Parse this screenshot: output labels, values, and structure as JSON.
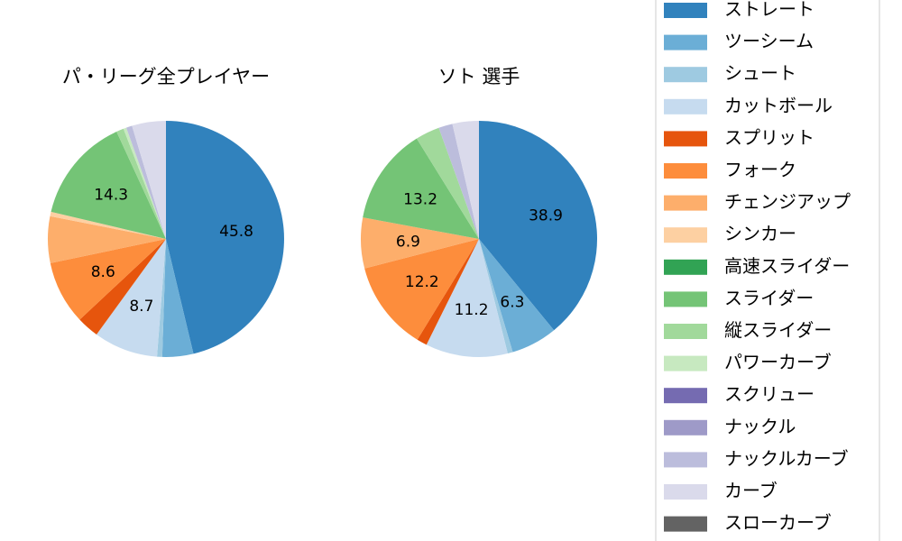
{
  "chart_data": [
    {
      "type": "pie",
      "title": "パ・リーグ全プレイヤー",
      "slices": [
        {
          "label": "ストレート",
          "value": 45.8,
          "color": "#3182bd",
          "show_label": true
        },
        {
          "label": "ツーシーム",
          "value": 4.2,
          "color": "#6baed6",
          "show_label": false
        },
        {
          "label": "シュート",
          "value": 0.7,
          "color": "#9ecae1",
          "show_label": false
        },
        {
          "label": "カットボール",
          "value": 8.7,
          "color": "#c6dbef",
          "show_label": true
        },
        {
          "label": "スプリット",
          "value": 3.0,
          "color": "#e6550d",
          "show_label": false
        },
        {
          "label": "フォーク",
          "value": 8.6,
          "color": "#fd8d3c",
          "show_label": true
        },
        {
          "label": "チェンジアップ",
          "value": 6.3,
          "color": "#fdae6b",
          "show_label": false
        },
        {
          "label": "シンカー",
          "value": 0.6,
          "color": "#fdd0a2",
          "show_label": false
        },
        {
          "label": "高速スライダー",
          "value": 0.0,
          "color": "#31a354",
          "show_label": false
        },
        {
          "label": "スライダー",
          "value": 14.3,
          "color": "#74c476",
          "show_label": true
        },
        {
          "label": "縦スライダー",
          "value": 1.0,
          "color": "#a1d99b",
          "show_label": false
        },
        {
          "label": "パワーカーブ",
          "value": 0.4,
          "color": "#c7e9c0",
          "show_label": false
        },
        {
          "label": "スクリュー",
          "value": 0.0,
          "color": "#756bb1",
          "show_label": false
        },
        {
          "label": "ナックル",
          "value": 0.0,
          "color": "#9e9ac8",
          "show_label": false
        },
        {
          "label": "ナックルカーブ",
          "value": 0.8,
          "color": "#bcbddc",
          "show_label": false
        },
        {
          "label": "カーブ",
          "value": 4.6,
          "color": "#dadaeb",
          "show_label": false
        },
        {
          "label": "スローカーブ",
          "value": 0.0,
          "color": "#636363",
          "show_label": false
        }
      ]
    },
    {
      "type": "pie",
      "title": "ソト  選手",
      "slices": [
        {
          "label": "ストレート",
          "value": 38.9,
          "color": "#3182bd",
          "show_label": true
        },
        {
          "label": "ツーシーム",
          "value": 6.3,
          "color": "#6baed6",
          "show_label": true
        },
        {
          "label": "シュート",
          "value": 0.7,
          "color": "#9ecae1",
          "show_label": false
        },
        {
          "label": "カットボール",
          "value": 11.2,
          "color": "#c6dbef",
          "show_label": true
        },
        {
          "label": "スプリット",
          "value": 1.4,
          "color": "#e6550d",
          "show_label": false
        },
        {
          "label": "フォーク",
          "value": 12.2,
          "color": "#fd8d3c",
          "show_label": true
        },
        {
          "label": "チェンジアップ",
          "value": 6.9,
          "color": "#fdae6b",
          "show_label": true
        },
        {
          "label": "シンカー",
          "value": 0.0,
          "color": "#fdd0a2",
          "show_label": false
        },
        {
          "label": "高速スライダー",
          "value": 0.0,
          "color": "#31a354",
          "show_label": false
        },
        {
          "label": "スライダー",
          "value": 13.2,
          "color": "#74c476",
          "show_label": true
        },
        {
          "label": "縦スライダー",
          "value": 3.3,
          "color": "#a1d99b",
          "show_label": false
        },
        {
          "label": "パワーカーブ",
          "value": 0.0,
          "color": "#c7e9c0",
          "show_label": false
        },
        {
          "label": "スクリュー",
          "value": 0.0,
          "color": "#756bb1",
          "show_label": false
        },
        {
          "label": "ナックル",
          "value": 0.0,
          "color": "#9e9ac8",
          "show_label": false
        },
        {
          "label": "ナックルカーブ",
          "value": 1.9,
          "color": "#bcbddc",
          "show_label": false
        },
        {
          "label": "カーブ",
          "value": 3.6,
          "color": "#dadaeb",
          "show_label": false
        },
        {
          "label": "スローカーブ",
          "value": 0.0,
          "color": "#636363",
          "show_label": false
        }
      ]
    }
  ],
  "legend": {
    "placement": "right",
    "items": [
      {
        "label": "ストレート",
        "color": "#3182bd"
      },
      {
        "label": "ツーシーム",
        "color": "#6baed6"
      },
      {
        "label": "シュート",
        "color": "#9ecae1"
      },
      {
        "label": "カットボール",
        "color": "#c6dbef"
      },
      {
        "label": "スプリット",
        "color": "#e6550d"
      },
      {
        "label": "フォーク",
        "color": "#fd8d3c"
      },
      {
        "label": "チェンジアップ",
        "color": "#fdae6b"
      },
      {
        "label": "シンカー",
        "color": "#fdd0a2"
      },
      {
        "label": "高速スライダー",
        "color": "#31a354"
      },
      {
        "label": "スライダー",
        "color": "#74c476"
      },
      {
        "label": "縦スライダー",
        "color": "#a1d99b"
      },
      {
        "label": "パワーカーブ",
        "color": "#c7e9c0"
      },
      {
        "label": "スクリュー",
        "color": "#756bb1"
      },
      {
        "label": "ナックル",
        "color": "#9e9ac8"
      },
      {
        "label": "ナックルカーブ",
        "color": "#bcbddc"
      },
      {
        "label": "カーブ",
        "color": "#dadaeb"
      },
      {
        "label": "スローカーブ",
        "color": "#636363"
      }
    ]
  }
}
